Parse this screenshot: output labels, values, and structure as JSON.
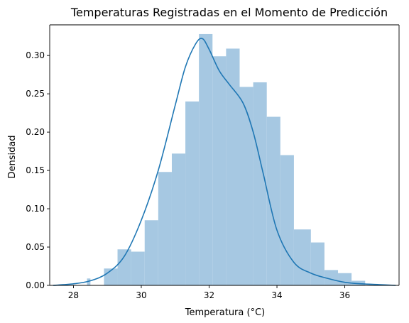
{
  "chart_data": {
    "type": "bar",
    "title": "Temperaturas Registradas en el Momento de Predicción",
    "xlabel": "Temperatura (°C)",
    "ylabel": "Densidad",
    "xlim": [
      27.3,
      37.6
    ],
    "ylim": [
      0,
      0.34
    ],
    "xticks": [
      28,
      30,
      32,
      34,
      36
    ],
    "yticks": [
      0.0,
      0.05,
      0.1,
      0.15,
      0.2,
      0.25,
      0.3
    ],
    "ytick_labels": [
      "0.00",
      "0.05",
      "0.10",
      "0.15",
      "0.20",
      "0.25",
      "0.30"
    ],
    "grid": false,
    "histogram": {
      "bin_edges": [
        28.0,
        28.4,
        28.5,
        28.9,
        29.3,
        29.7,
        30.1,
        30.5,
        30.9,
        31.3,
        31.7,
        32.1,
        32.5,
        32.9,
        33.3,
        33.7,
        34.1,
        34.5,
        35.0,
        35.4,
        35.8,
        36.2
      ],
      "densities": [
        0.0,
        0.009,
        0.0,
        0.022,
        0.047,
        0.044,
        0.085,
        0.148,
        0.172,
        0.24,
        0.328,
        0.299,
        0.309,
        0.259,
        0.265,
        0.22,
        0.17,
        0.073,
        0.056,
        0.02,
        0.016,
        0.006
      ]
    },
    "kde": {
      "x": [
        27.4,
        28.0,
        28.5,
        29.0,
        29.5,
        30.0,
        30.5,
        31.0,
        31.3,
        31.6,
        31.8,
        32.0,
        32.3,
        32.6,
        33.0,
        33.3,
        33.6,
        34.0,
        34.5,
        35.0,
        35.5,
        36.0,
        36.5,
        37.0,
        37.5
      ],
      "y": [
        0.0,
        0.002,
        0.006,
        0.016,
        0.038,
        0.085,
        0.15,
        0.235,
        0.285,
        0.315,
        0.322,
        0.308,
        0.28,
        0.262,
        0.238,
        0.2,
        0.145,
        0.072,
        0.03,
        0.016,
        0.009,
        0.004,
        0.002,
        0.001,
        0.0
      ]
    },
    "colors": {
      "bars": "#a6c8e2",
      "line": "#1f77b4"
    }
  }
}
